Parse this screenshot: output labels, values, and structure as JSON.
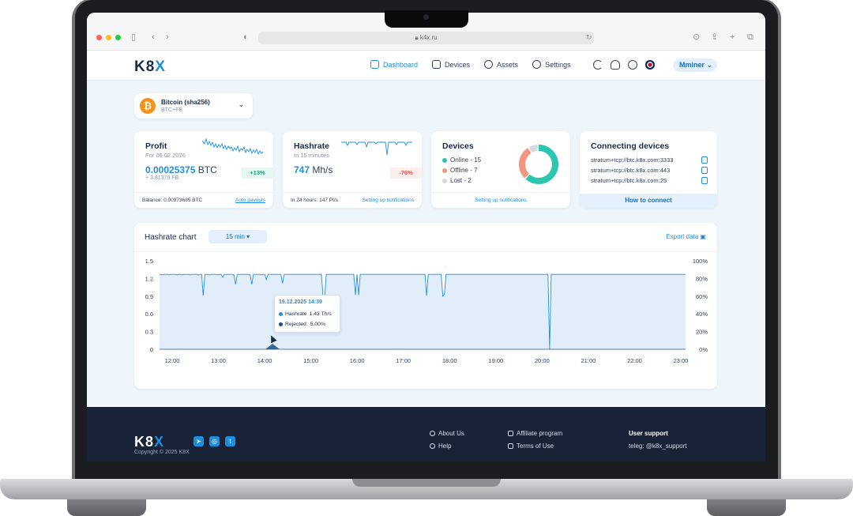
{
  "browser": {
    "url": "k4x.ru"
  },
  "brand": {
    "logo_main": "K8",
    "logo_accent": "X"
  },
  "nav": [
    {
      "label": "Dashboard",
      "icon": "dashboard-icon",
      "active": true
    },
    {
      "label": "Devices",
      "icon": "devices-icon",
      "active": false
    },
    {
      "label": "Assets",
      "icon": "assets-icon",
      "active": false
    },
    {
      "label": "Settings",
      "icon": "gear-icon",
      "active": false
    }
  ],
  "header": {
    "user_label": "Mminer"
  },
  "coin": {
    "name": "Bitcoin (sha256)",
    "sub": "BTC+FB",
    "symbol": "₿"
  },
  "profit": {
    "title": "Profit",
    "subtitle": "For 06.02.2026",
    "value": "0.00025375",
    "unit": "BTC",
    "secondary": "+ 3.81379 FB",
    "change": "+13%",
    "balance": "Balance: 0.00973685 BTC",
    "link": "Auto payouts"
  },
  "hashrate": {
    "title": "Hashrate",
    "subtitle": "In 15 minutes",
    "value": "747",
    "unit": "Mh/s",
    "change": "-76%",
    "footer": "In 24 hours: 147 Pt/s",
    "link": "Setting up notifications"
  },
  "devices": {
    "title": "Devices",
    "online": "Online - 15",
    "offline": "Offline - 7",
    "lost": "Lost - 2",
    "online_count": 15,
    "offline_count": 7,
    "lost_count": 2,
    "link": "Setting up notifications",
    "colors": {
      "online": "#2cc5b0",
      "offline": "#f2967e",
      "lost": "#d5d9df"
    }
  },
  "connecting": {
    "title": "Connecting devices",
    "urls": [
      "stratum+tcp://btc.k8x.com:3333",
      "stratum+tcp://btc.k8x.com:443",
      "stratum+tcp://btc.k8x.com:25"
    ],
    "button": "How to connect"
  },
  "chart": {
    "title": "Hashrate chart",
    "interval": "15 min ▾",
    "export": "Export data",
    "tooltip": {
      "date": "19.12.2025 14:39",
      "hashrate_label": "Hashrate",
      "hashrate_value": "1.43 Th/s",
      "rejected_label": "Rejected:",
      "rejected_value": "5.00%"
    }
  },
  "chart_data": {
    "type": "area",
    "x_ticks": [
      "12:00",
      "13:00",
      "14:00",
      "15:00",
      "16:00",
      "17:00",
      "18:00",
      "19:00",
      "20:00",
      "21:00",
      "22:00",
      "23:00"
    ],
    "y_ticks_left": [
      "1.5",
      "1.2",
      "0.9",
      "0.6",
      "0.3",
      "0"
    ],
    "y_ticks_right": [
      "100%",
      "80%",
      "60%",
      "40%",
      "20%",
      "0%"
    ],
    "ylim": [
      0,
      1.5
    ],
    "grid": false,
    "series": [
      {
        "values": [
          1.27,
          1.27,
          1.26,
          1.27,
          1.27,
          1.27,
          1.26,
          1.27,
          1.27,
          1.27,
          1.27,
          1.26,
          1.27,
          1.27,
          1.26,
          1.27,
          1.27,
          1.27,
          1.27,
          1.26,
          1.27,
          1.27,
          1.27,
          1.27,
          1.26,
          1.27,
          1.27,
          0.91,
          1.27,
          1.27,
          1.27,
          1.26,
          1.27,
          1.27,
          1.27,
          1.27,
          1.26,
          1.27,
          1.27,
          1.22,
          1.27,
          1.27,
          1.27,
          1.27,
          1.27,
          1.27,
          1.26,
          1.1,
          1.27,
          1.27,
          1.27,
          1.27,
          1.27,
          1.27,
          1.27,
          1.27,
          1.26,
          1.1,
          1.27,
          1.27,
          1.27,
          1.27,
          1.27,
          1.26,
          1.27,
          1.27,
          1.18,
          1.27,
          1.27,
          1.27,
          1.27,
          1.27,
          1.27,
          1.27,
          1.27,
          1.27,
          1.12,
          1.27,
          1.27,
          1.27,
          1.27,
          1.27,
          1.27,
          1.27,
          1.27,
          1.27,
          1.27,
          1.27,
          1.27,
          1.27,
          1.27,
          1.27,
          1.27,
          1.27,
          1.27,
          1.27,
          1.27,
          1.27,
          1.27,
          1.27,
          1.27,
          0.91,
          0.86,
          1.27,
          1.27,
          1.27,
          1.27,
          1.27,
          1.27,
          1.27,
          1.27,
          1.27,
          1.27,
          1.27,
          1.27,
          1.27,
          1.27,
          1.27,
          1.27,
          1.27,
          1.27,
          0.92,
          1.27,
          0.92,
          1.27,
          1.27,
          1.27,
          1.27,
          1.27,
          1.27,
          1.27,
          1.27,
          1.27,
          1.27,
          1.27,
          1.27,
          1.27,
          1.27,
          1.27,
          1.27,
          1.27,
          1.27,
          1.27,
          1.27,
          1.27,
          1.27,
          1.27,
          1.27,
          1.27,
          1.27,
          1.27,
          1.27,
          1.27,
          1.27,
          1.27,
          1.27,
          1.27,
          1.27,
          1.27,
          1.27,
          1.27,
          1.27,
          1.27,
          1.27,
          1.27,
          0.91,
          1.27,
          1.27,
          1.27,
          1.27,
          1.27,
          1.27,
          1.27,
          1.27,
          1.27,
          0.9,
          0.93,
          1.27,
          1.27,
          1.27,
          1.27,
          1.27,
          1.27,
          1.27,
          1.27,
          1.27,
          1.27,
          1.27,
          1.27,
          1.27,
          1.27,
          1.27,
          1.27,
          1.27,
          1.27,
          1.27,
          1.27,
          1.27,
          1.27,
          1.27,
          1.27,
          1.27,
          1.27,
          1.27,
          1.27,
          1.27,
          1.27,
          1.27,
          1.27,
          1.27,
          1.27,
          1.27,
          1.27,
          1.27,
          1.27,
          1.27,
          1.27,
          1.27,
          1.27,
          1.27,
          1.27,
          1.27,
          1.27,
          1.27,
          1.27,
          1.27,
          1.27,
          1.27,
          1.27,
          1.27,
          1.27,
          1.27,
          1.27,
          1.27,
          1.27,
          1.27,
          1.27,
          1.27,
          1.27,
          1.27,
          1.27,
          0.0,
          1.27,
          1.27,
          1.27,
          1.27,
          1.27,
          1.27,
          1.27,
          1.27,
          1.27,
          1.27,
          1.27,
          1.27,
          1.27,
          1.27,
          1.27,
          1.27,
          1.27,
          1.27,
          1.27,
          1.27,
          1.27,
          1.27,
          1.27,
          1.27,
          1.27,
          1.27,
          1.27,
          1.27,
          1.27,
          1.27,
          1.27,
          1.27,
          1.27,
          1.27,
          1.27,
          1.27,
          1.27,
          1.27,
          1.27,
          1.27,
          1.27,
          1.27,
          1.27,
          1.27,
          1.27,
          1.27,
          1.27,
          1.27,
          1.27,
          1.27,
          1.27,
          1.27,
          1.27,
          1.27,
          1.27,
          1.27,
          1.27,
          1.27,
          1.27,
          1.27,
          1.27,
          1.27,
          1.27,
          1.27,
          1.27,
          1.27,
          1.27,
          1.27,
          1.27,
          1.27,
          1.27,
          1.27,
          1.27,
          1.27,
          1.27,
          1.27,
          1.27,
          1.27,
          1.27,
          1.27,
          1.27,
          1.27,
          1.27,
          1.27
        ],
        "color": "#1d8fe0"
      }
    ]
  },
  "footer": {
    "logo_main": "K8",
    "logo_accent": "X",
    "copyright": "Copyright © 2025 K8X",
    "links": [
      {
        "label": "About Us"
      },
      {
        "label": "Help"
      },
      {
        "label": "Affiliate program"
      },
      {
        "label": "Terms of Use"
      }
    ],
    "support_title": "User support",
    "support_teleg": "teleg: @k8x_support"
  }
}
